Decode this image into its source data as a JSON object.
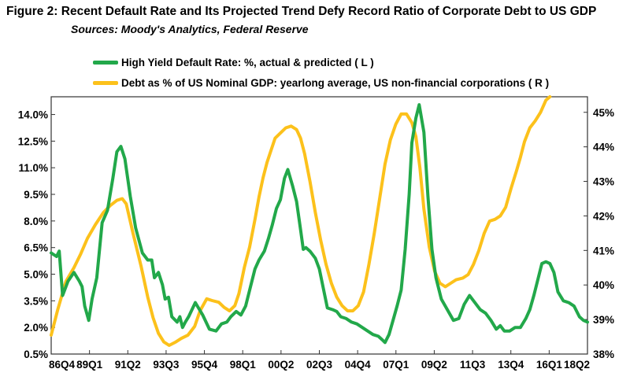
{
  "chart_data": {
    "type": "line",
    "title": "Figure 2: Recent Default Rate and Its Projected Trend Defy Record Ratio of Corporate Debt to US GDP",
    "subtitle": "Sources: Moody's Analytics, Federal Reserve",
    "x_tick_labels": [
      "86Q4",
      "89Q1",
      "91Q2",
      "93Q3",
      "95Q4",
      "98Q1",
      "00Q2",
      "02Q3",
      "04Q4",
      "07Q1",
      "09Q2",
      "11Q3",
      "13Q4",
      "16Q1",
      "18Q2"
    ],
    "left_axis": {
      "range": [
        0.5,
        15.0
      ],
      "tick_values": [
        0.5,
        2.0,
        3.5,
        5.0,
        6.5,
        8.0,
        9.5,
        11.0,
        12.5,
        14.0
      ],
      "tick_labels": [
        "0.5%",
        "2.0%",
        "3.5%",
        "5.0%",
        "6.5%",
        "8.0%",
        "9.5%",
        "11.0%",
        "12.5%",
        "14.0%"
      ]
    },
    "right_axis": {
      "range": [
        38.0,
        45.45
      ],
      "tick_values": [
        38,
        39,
        40,
        41,
        42,
        43,
        44,
        45
      ],
      "tick_labels": [
        "38%",
        "39%",
        "40%",
        "41%",
        "42%",
        "43%",
        "44%",
        "45%"
      ]
    },
    "series": [
      {
        "name": "High Yield Default Rate: %, actual & predicted ( L )",
        "axis": "left",
        "color": "#22a84a",
        "points": [
          [
            0,
            6.2
          ],
          [
            0.8,
            6.0
          ],
          [
            1.2,
            6.3
          ],
          [
            1.7,
            3.8
          ],
          [
            2.5,
            4.6
          ],
          [
            3.4,
            5.1
          ],
          [
            4.2,
            4.6
          ],
          [
            4.6,
            4.3
          ],
          [
            5.0,
            3.2
          ],
          [
            5.6,
            2.4
          ],
          [
            6.1,
            3.6
          ],
          [
            6.8,
            4.8
          ],
          [
            7.6,
            7.9
          ],
          [
            8.4,
            8.6
          ],
          [
            9.2,
            10.4
          ],
          [
            9.8,
            11.9
          ],
          [
            10.4,
            12.2
          ],
          [
            11.0,
            11.5
          ],
          [
            11.8,
            9.4
          ],
          [
            12.6,
            7.6
          ],
          [
            13.6,
            6.2
          ],
          [
            14.4,
            5.8
          ],
          [
            15.0,
            5.8
          ],
          [
            15.4,
            4.8
          ],
          [
            16.0,
            5.1
          ],
          [
            16.6,
            4.4
          ],
          [
            17.0,
            3.6
          ],
          [
            17.5,
            3.7
          ],
          [
            18.0,
            2.6
          ],
          [
            18.8,
            2.3
          ],
          [
            19.2,
            2.6
          ],
          [
            19.6,
            2.0
          ],
          [
            20.0,
            2.3
          ],
          [
            20.5,
            2.6
          ],
          [
            21.5,
            3.4
          ],
          [
            22.6,
            2.7
          ],
          [
            23.6,
            1.9
          ],
          [
            24.6,
            1.8
          ],
          [
            25.4,
            2.2
          ],
          [
            26.2,
            2.3
          ],
          [
            26.8,
            2.6
          ],
          [
            27.6,
            2.9
          ],
          [
            28.3,
            2.7
          ],
          [
            29.0,
            3.2
          ],
          [
            29.8,
            4.4
          ],
          [
            30.4,
            5.3
          ],
          [
            31.0,
            5.8
          ],
          [
            31.8,
            6.3
          ],
          [
            32.4,
            7.0
          ],
          [
            33.0,
            7.8
          ],
          [
            33.6,
            8.7
          ],
          [
            34.2,
            9.2
          ],
          [
            34.8,
            10.4
          ],
          [
            35.3,
            10.9
          ],
          [
            36.0,
            10.0
          ],
          [
            36.6,
            9.1
          ],
          [
            37.2,
            7.5
          ],
          [
            37.6,
            6.4
          ],
          [
            38.0,
            6.5
          ],
          [
            38.6,
            6.3
          ],
          [
            39.4,
            5.9
          ],
          [
            40.0,
            5.3
          ],
          [
            40.6,
            4.2
          ],
          [
            41.2,
            3.1
          ],
          [
            42.0,
            3.0
          ],
          [
            42.6,
            2.9
          ],
          [
            43.2,
            2.6
          ],
          [
            44.0,
            2.5
          ],
          [
            44.8,
            2.3
          ],
          [
            45.6,
            2.2
          ],
          [
            46.4,
            2.0
          ],
          [
            47.2,
            1.8
          ],
          [
            48.0,
            1.6
          ],
          [
            48.8,
            1.5
          ],
          [
            49.4,
            1.3
          ],
          [
            49.8,
            1.15
          ],
          [
            50.4,
            1.6
          ],
          [
            51.0,
            2.4
          ],
          [
            51.6,
            3.2
          ],
          [
            52.2,
            4.1
          ],
          [
            52.8,
            6.4
          ],
          [
            53.4,
            9.5
          ],
          [
            53.8,
            12.4
          ],
          [
            54.4,
            13.8
          ],
          [
            54.9,
            14.55
          ],
          [
            55.6,
            13.0
          ],
          [
            56.2,
            9.4
          ],
          [
            56.8,
            6.4
          ],
          [
            57.4,
            4.8
          ],
          [
            58.2,
            3.6
          ],
          [
            58.8,
            3.2
          ],
          [
            59.4,
            2.8
          ],
          [
            60.0,
            2.4
          ],
          [
            60.8,
            2.5
          ],
          [
            61.6,
            3.3
          ],
          [
            62.4,
            3.8
          ],
          [
            63.2,
            3.4
          ],
          [
            64.0,
            3.0
          ],
          [
            64.8,
            2.8
          ],
          [
            65.6,
            2.4
          ],
          [
            66.4,
            1.9
          ],
          [
            67.0,
            2.1
          ],
          [
            67.6,
            1.8
          ],
          [
            68.4,
            1.8
          ],
          [
            69.2,
            2.0
          ],
          [
            70.0,
            2.0
          ],
          [
            70.8,
            2.5
          ],
          [
            71.4,
            3.0
          ],
          [
            72.0,
            3.8
          ],
          [
            72.6,
            4.7
          ],
          [
            73.2,
            5.6
          ],
          [
            73.8,
            5.7
          ],
          [
            74.4,
            5.6
          ],
          [
            75.0,
            5.1
          ],
          [
            75.6,
            4.0
          ],
          [
            76.4,
            3.5
          ],
          [
            77.2,
            3.4
          ],
          [
            78.0,
            3.2
          ],
          [
            78.8,
            2.6
          ],
          [
            79.4,
            2.4
          ],
          [
            80.0,
            2.3
          ]
        ]
      },
      {
        "name": "Debt as % of US Nominal GDP: yearlong average, US non-financial corporations ( R )",
        "axis": "right",
        "color": "#fcc11b",
        "points": [
          [
            0,
            38.55
          ],
          [
            1.0,
            39.3
          ],
          [
            2.2,
            40.1
          ],
          [
            3.4,
            40.5
          ],
          [
            4.4,
            40.9
          ],
          [
            5.4,
            41.35
          ],
          [
            6.6,
            41.75
          ],
          [
            7.8,
            42.1
          ],
          [
            8.8,
            42.3
          ],
          [
            9.8,
            42.45
          ],
          [
            10.6,
            42.5
          ],
          [
            11.2,
            42.35
          ],
          [
            12.2,
            41.5
          ],
          [
            13.4,
            40.55
          ],
          [
            14.4,
            39.65
          ],
          [
            15.2,
            39.05
          ],
          [
            16.0,
            38.6
          ],
          [
            16.8,
            38.35
          ],
          [
            17.6,
            38.25
          ],
          [
            18.6,
            38.35
          ],
          [
            19.4,
            38.45
          ],
          [
            20.4,
            38.55
          ],
          [
            21.4,
            38.8
          ],
          [
            22.2,
            39.25
          ],
          [
            23.2,
            39.6
          ],
          [
            24.0,
            39.55
          ],
          [
            25.0,
            39.5
          ],
          [
            25.8,
            39.35
          ],
          [
            26.6,
            39.25
          ],
          [
            27.4,
            39.4
          ],
          [
            28.0,
            39.75
          ],
          [
            28.8,
            40.5
          ],
          [
            29.6,
            41.1
          ],
          [
            30.4,
            41.9
          ],
          [
            31.0,
            42.55
          ],
          [
            31.6,
            43.1
          ],
          [
            32.2,
            43.55
          ],
          [
            32.8,
            43.9
          ],
          [
            33.4,
            44.25
          ],
          [
            34.2,
            44.4
          ],
          [
            35.0,
            44.55
          ],
          [
            35.8,
            44.6
          ],
          [
            36.6,
            44.5
          ],
          [
            37.2,
            44.25
          ],
          [
            37.8,
            43.8
          ],
          [
            38.6,
            43.0
          ],
          [
            39.4,
            42.1
          ],
          [
            40.2,
            41.3
          ],
          [
            41.0,
            40.6
          ],
          [
            41.8,
            40.05
          ],
          [
            42.6,
            39.65
          ],
          [
            43.4,
            39.4
          ],
          [
            44.2,
            39.25
          ],
          [
            45.0,
            39.25
          ],
          [
            45.8,
            39.4
          ],
          [
            46.6,
            39.8
          ],
          [
            47.4,
            40.6
          ],
          [
            48.2,
            41.5
          ],
          [
            49.0,
            42.5
          ],
          [
            49.8,
            43.5
          ],
          [
            50.6,
            44.2
          ],
          [
            51.4,
            44.65
          ],
          [
            52.2,
            44.95
          ],
          [
            53.0,
            44.95
          ],
          [
            53.8,
            44.7
          ],
          [
            54.4,
            44.3
          ],
          [
            55.0,
            43.4
          ],
          [
            55.6,
            42.2
          ],
          [
            56.4,
            41.1
          ],
          [
            57.2,
            40.4
          ],
          [
            58.0,
            40.05
          ],
          [
            58.8,
            39.95
          ],
          [
            59.6,
            40.05
          ],
          [
            60.4,
            40.15
          ],
          [
            61.4,
            40.2
          ],
          [
            62.2,
            40.3
          ],
          [
            63.0,
            40.6
          ],
          [
            63.8,
            41.0
          ],
          [
            64.6,
            41.5
          ],
          [
            65.4,
            41.85
          ],
          [
            66.2,
            41.9
          ],
          [
            67.0,
            42.0
          ],
          [
            67.8,
            42.25
          ],
          [
            68.6,
            42.8
          ],
          [
            69.4,
            43.3
          ],
          [
            70.0,
            43.7
          ],
          [
            70.6,
            44.15
          ],
          [
            71.4,
            44.55
          ],
          [
            72.2,
            44.75
          ],
          [
            73.0,
            45.0
          ],
          [
            73.8,
            45.35
          ],
          [
            74.4,
            45.45
          ]
        ]
      }
    ],
    "x_point_range": [
      0,
      80
    ],
    "grid": false
  }
}
